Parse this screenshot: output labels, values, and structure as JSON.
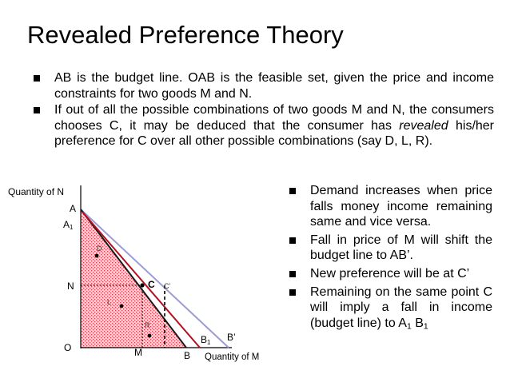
{
  "slide": {
    "title": "Revealed Preference Theory",
    "top_bullets": [
      {
        "text": "AB is the budget line. OAB is the feasible set, given the price and income constraints for two goods M and N."
      },
      {
        "pre": "If out of all the possible combinations of two goods M and N, the consumers chooses C, it may be deduced that the consumer has ",
        "emph": "revealed",
        "post": " his/her preference for C over all other possible combinations (say D, L, R)."
      }
    ],
    "right_bullets": [
      {
        "text": "Demand increases when price falls money income remaining same and vice versa."
      },
      {
        "text": "Fall in price of M will shift the budget line to AB’."
      },
      {
        "text": "New preference will be at C’"
      },
      {
        "pre": "Remaining on the same point C will imply a fall in income (budget line) to A",
        "sub1": "1",
        "mid": " B",
        "sub2": "1"
      }
    ]
  },
  "diagram": {
    "y_axis_label": "Quantity of N",
    "x_axis_label": "Quantity of M",
    "origin": "O",
    "point_A": "A",
    "point_A1": {
      "base": "A",
      "sub": "1"
    },
    "point_N": "N",
    "point_M": "M",
    "point_B": "B",
    "point_B1": {
      "base": "B",
      "sub": "1"
    },
    "point_B_prime": "B’",
    "point_C": "C",
    "point_C_prime": "C’",
    "point_D": "D",
    "point_L": "L",
    "point_R": "R",
    "colors": {
      "budget_line_AB": "#1a1a1a",
      "budget_line_A1B1": "#b01020",
      "budget_line_AB_prime": "#9b9bd6",
      "feasible_set_fill": "#f4c9cf"
    }
  }
}
